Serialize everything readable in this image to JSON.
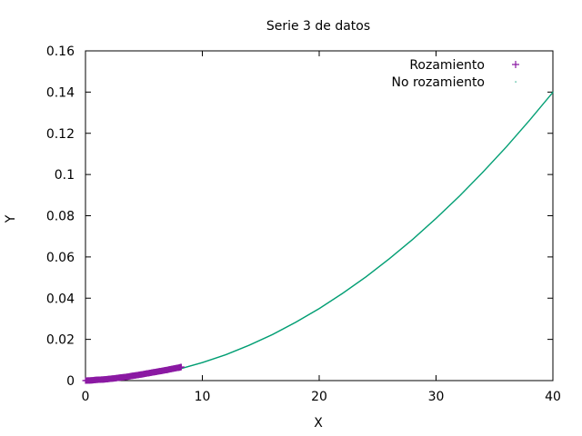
{
  "chart_data": {
    "type": "scatter",
    "title": "Serie 3 de datos",
    "xlabel": "X",
    "ylabel": "Y",
    "xlim": [
      0,
      40
    ],
    "ylim": [
      0,
      0.16
    ],
    "x_ticks": [
      0,
      10,
      20,
      30,
      40
    ],
    "y_ticks": [
      0,
      0.02,
      0.04,
      0.06,
      0.08,
      0.1,
      0.12,
      0.14,
      0.16
    ],
    "x_tick_labels": [
      "0",
      "10",
      "20",
      "30",
      "40"
    ],
    "y_tick_labels": [
      "0",
      "0.02",
      "0.04",
      "0.06",
      "0.08",
      "0.1",
      "0.12",
      "0.14",
      "0.16"
    ],
    "grid": false,
    "legend_position": "top-right",
    "series": [
      {
        "name": "Rozamiento",
        "marker": "+",
        "color": "#8b1aa3",
        "x": [
          0,
          0.5,
          1,
          1.5,
          2,
          2.5,
          3,
          3.5,
          4,
          4.5,
          5,
          5.5,
          6,
          6.5,
          7,
          7.5,
          8,
          8.2
        ],
        "y": [
          0,
          0.0001,
          0.0004,
          0.0005,
          0.0008,
          0.0011,
          0.0015,
          0.0018,
          0.0023,
          0.0027,
          0.0032,
          0.0037,
          0.0042,
          0.0047,
          0.0052,
          0.0058,
          0.0063,
          0.0066
        ]
      },
      {
        "name": "No rozamiento",
        "marker": "·",
        "color": "#009e73",
        "x": [
          0,
          2,
          4,
          6,
          8,
          10,
          12,
          14,
          16,
          18,
          20,
          22,
          24,
          26,
          28,
          30,
          32,
          34,
          36,
          38,
          40
        ],
        "y": [
          0,
          0.0004,
          0.0014,
          0.0032,
          0.0056,
          0.0088,
          0.0126,
          0.0172,
          0.0224,
          0.0284,
          0.035,
          0.0424,
          0.0504,
          0.0592,
          0.0686,
          0.0788,
          0.0896,
          0.1012,
          0.1134,
          0.1264,
          0.14
        ]
      }
    ]
  }
}
